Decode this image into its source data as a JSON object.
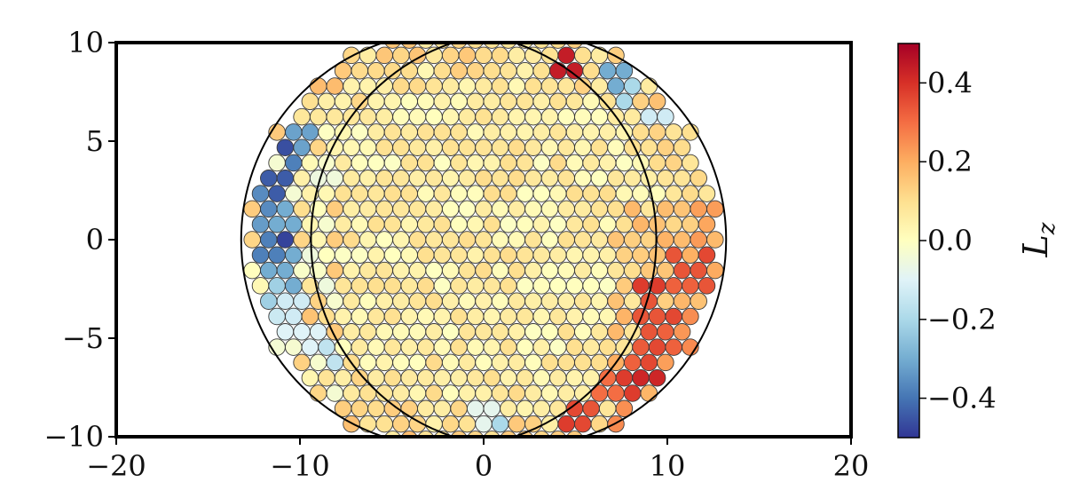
{
  "chart_data": {
    "type": "scatter",
    "title": "",
    "xlabel": "",
    "ylabel": "",
    "xlim": [
      -20,
      20
    ],
    "ylim": [
      -10,
      10
    ],
    "x_ticks": [
      -20,
      -10,
      0,
      10,
      20
    ],
    "x_tick_labels": [
      "−20",
      "−10",
      "0",
      "10",
      "20"
    ],
    "y_ticks": [
      -10,
      -5,
      0,
      5,
      10
    ],
    "y_tick_labels": [
      "−10",
      "−5",
      "0",
      "5",
      "10"
    ],
    "particle_diameter": 0.9,
    "boundary_circles": [
      {
        "cx": -1.9,
        "cy": 0,
        "r": 11.3
      },
      {
        "cx": 1.9,
        "cy": 0,
        "r": 11.3
      }
    ],
    "colorbar": {
      "title": "L",
      "title_subscript": "z",
      "vmin": -0.5,
      "vmax": 0.5,
      "ticks": [
        0.4,
        0.2,
        0.0,
        -0.2,
        -0.4
      ],
      "tick_labels": [
        "0.4",
        "0.2",
        "0.0",
        "−0.2",
        "−0.4"
      ],
      "colormap": "RdYlBu_r"
    },
    "highlighted_points": [
      {
        "x": 4.4,
        "y": 8.9,
        "lz": 0.44
      },
      {
        "x": 7.1,
        "y": 8.2,
        "lz": -0.3
      },
      {
        "x": 7.9,
        "y": 7.6,
        "lz": -0.2
      },
      {
        "x": 9.6,
        "y": 6.2,
        "lz": -0.13
      },
      {
        "x": -10.7,
        "y": 4.6,
        "lz": -0.46
      },
      {
        "x": -9.8,
        "y": 5.2,
        "lz": -0.32
      },
      {
        "x": -10.5,
        "y": 3.7,
        "lz": -0.38
      },
      {
        "x": -11.3,
        "y": 2.7,
        "lz": -0.44
      },
      {
        "x": -11.8,
        "y": 1.7,
        "lz": -0.36
      },
      {
        "x": -10.8,
        "y": 1.0,
        "lz": -0.3
      },
      {
        "x": -11.8,
        "y": 0.5,
        "lz": -0.33
      },
      {
        "x": -10.9,
        "y": 0.0,
        "lz": -0.48
      },
      {
        "x": -11.7,
        "y": -0.5,
        "lz": -0.38
      },
      {
        "x": -10.8,
        "y": -1.2,
        "lz": -0.3
      },
      {
        "x": -11.6,
        "y": -1.6,
        "lz": -0.3
      },
      {
        "x": -10.7,
        "y": -2.4,
        "lz": -0.3
      },
      {
        "x": -11.3,
        "y": -2.7,
        "lz": -0.22
      },
      {
        "x": -10.3,
        "y": -3.3,
        "lz": -0.13
      },
      {
        "x": -11.0,
        "y": -3.8,
        "lz": -0.14
      },
      {
        "x": -10.4,
        "y": -4.7,
        "lz": -0.1
      },
      {
        "x": -9.4,
        "y": -4.8,
        "lz": -0.1
      },
      {
        "x": -8.2,
        "y": -6.1,
        "lz": -0.16
      },
      {
        "x": 0.9,
        "y": -9.4,
        "lz": -0.2
      },
      {
        "x": -0.1,
        "y": -9.0,
        "lz": -0.08
      },
      {
        "x": 12.1,
        "y": -0.8,
        "lz": 0.36
      },
      {
        "x": 11.7,
        "y": -1.8,
        "lz": 0.34
      },
      {
        "x": 10.7,
        "y": -2.2,
        "lz": 0.32
      },
      {
        "x": 10.5,
        "y": -1.0,
        "lz": 0.34
      },
      {
        "x": 9.0,
        "y": -2.4,
        "lz": 0.38
      },
      {
        "x": 8.8,
        "y": -3.6,
        "lz": 0.34
      },
      {
        "x": 10.5,
        "y": -3.9,
        "lz": 0.36
      },
      {
        "x": 9.9,
        "y": -4.9,
        "lz": 0.32
      },
      {
        "x": 8.9,
        "y": -4.6,
        "lz": 0.34
      },
      {
        "x": 8.5,
        "y": -5.4,
        "lz": 0.33
      },
      {
        "x": 9.2,
        "y": -5.9,
        "lz": 0.36
      },
      {
        "x": 8.2,
        "y": -6.4,
        "lz": 0.32
      },
      {
        "x": 9.0,
        "y": -6.8,
        "lz": 0.42
      },
      {
        "x": 7.9,
        "y": -7.3,
        "lz": 0.38
      },
      {
        "x": 6.0,
        "y": -8.6,
        "lz": 0.34
      },
      {
        "x": 5.3,
        "y": -9.0,
        "lz": 0.36
      },
      {
        "x": 4.6,
        "y": -9.2,
        "lz": 0.38
      },
      {
        "x": 6.6,
        "y": -7.7,
        "lz": 0.3
      }
    ]
  }
}
